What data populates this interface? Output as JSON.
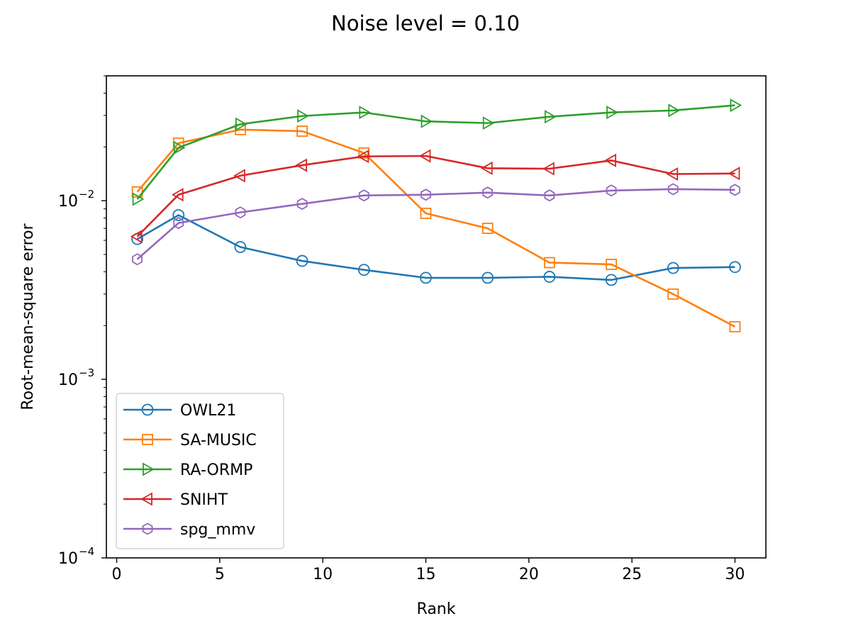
{
  "chart_data": {
    "type": "line",
    "title": "Noise level = 0.10",
    "xlabel": "Rank",
    "ylabel": "Root-mean-square error",
    "yscale": "log",
    "xlim": [
      -0.5,
      31.5
    ],
    "ylim": [
      0.0001,
      0.05
    ],
    "xticks": [
      0,
      5,
      10,
      15,
      20,
      25,
      30
    ],
    "yticks": [
      {
        "value": 0.0001,
        "base": "10",
        "exp": "−4"
      },
      {
        "value": 0.001,
        "base": "10",
        "exp": "−3"
      },
      {
        "value": 0.01,
        "base": "10",
        "exp": "−2"
      }
    ],
    "legend_position": "lower-left",
    "x": [
      1,
      3,
      6,
      9,
      12,
      15,
      18,
      21,
      24,
      27,
      30
    ],
    "series": [
      {
        "name": "OWL21",
        "color": "#1f77b4",
        "marker": "circle",
        "values": [
          0.0061,
          0.0083,
          0.0055,
          0.0046,
          0.0041,
          0.0037,
          0.0037,
          0.00375,
          0.0036,
          0.0042,
          0.00425
        ]
      },
      {
        "name": "SA-MUSIC",
        "color": "#ff7f0e",
        "marker": "square",
        "values": [
          0.0112,
          0.021,
          0.025,
          0.0245,
          0.0185,
          0.0085,
          0.007,
          0.0045,
          0.0044,
          0.003,
          0.00197
        ]
      },
      {
        "name": "RA-ORMP",
        "color": "#2ca02c",
        "marker": "triangle-right",
        "values": [
          0.0102,
          0.0198,
          0.0268,
          0.0298,
          0.0312,
          0.0278,
          0.0272,
          0.0295,
          0.0312,
          0.032,
          0.0342
        ]
      },
      {
        "name": "SNIHT",
        "color": "#d62728",
        "marker": "triangle-left",
        "values": [
          0.0063,
          0.0108,
          0.0138,
          0.0158,
          0.0177,
          0.0178,
          0.0152,
          0.0151,
          0.0168,
          0.0141,
          0.0142
        ]
      },
      {
        "name": "spg_mmv",
        "color": "#9467bd",
        "marker": "hexagon",
        "values": [
          0.0047,
          0.0075,
          0.0086,
          0.0096,
          0.0107,
          0.0108,
          0.0111,
          0.0107,
          0.0114,
          0.0116,
          0.0115
        ]
      }
    ]
  }
}
